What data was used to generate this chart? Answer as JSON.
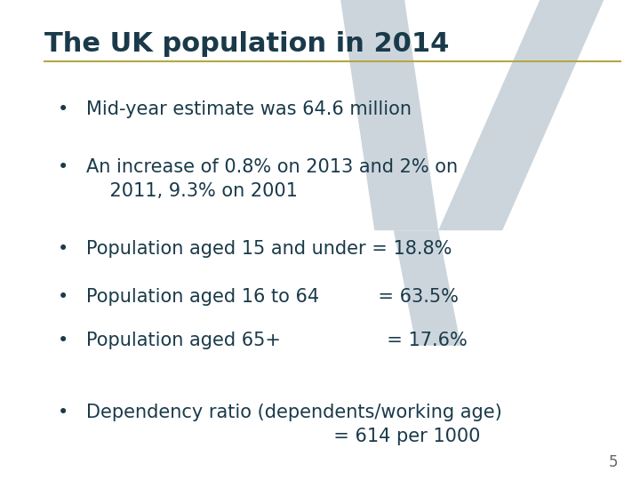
{
  "title": "The UK population in 2014",
  "title_color": "#1a3a4a",
  "title_fontsize": 22,
  "separator_color": "#b5a642",
  "background_color": "#ffffff",
  "text_color": "#1a3a4a",
  "bullet_color": "#1a3a4a",
  "watermark_color": "#cdd5dc",
  "page_number": "5",
  "page_number_color": "#666666",
  "page_number_fontsize": 12,
  "bullet_positions": [
    [
      0.79,
      "Mid-year estimate was 64.6 million"
    ],
    [
      0.67,
      "An increase of 0.8% on 2013 and 2% on\n    2011, 9.3% on 2001"
    ],
    [
      0.5,
      "Population aged 15 and under = 18.8%"
    ],
    [
      0.4,
      "Population aged 16 to 64          = 63.5%"
    ],
    [
      0.31,
      "Population aged 65+                  = 17.6%"
    ],
    [
      0.16,
      "Dependency ratio (dependents/working age)\n                                          = 614 per 1000"
    ]
  ]
}
